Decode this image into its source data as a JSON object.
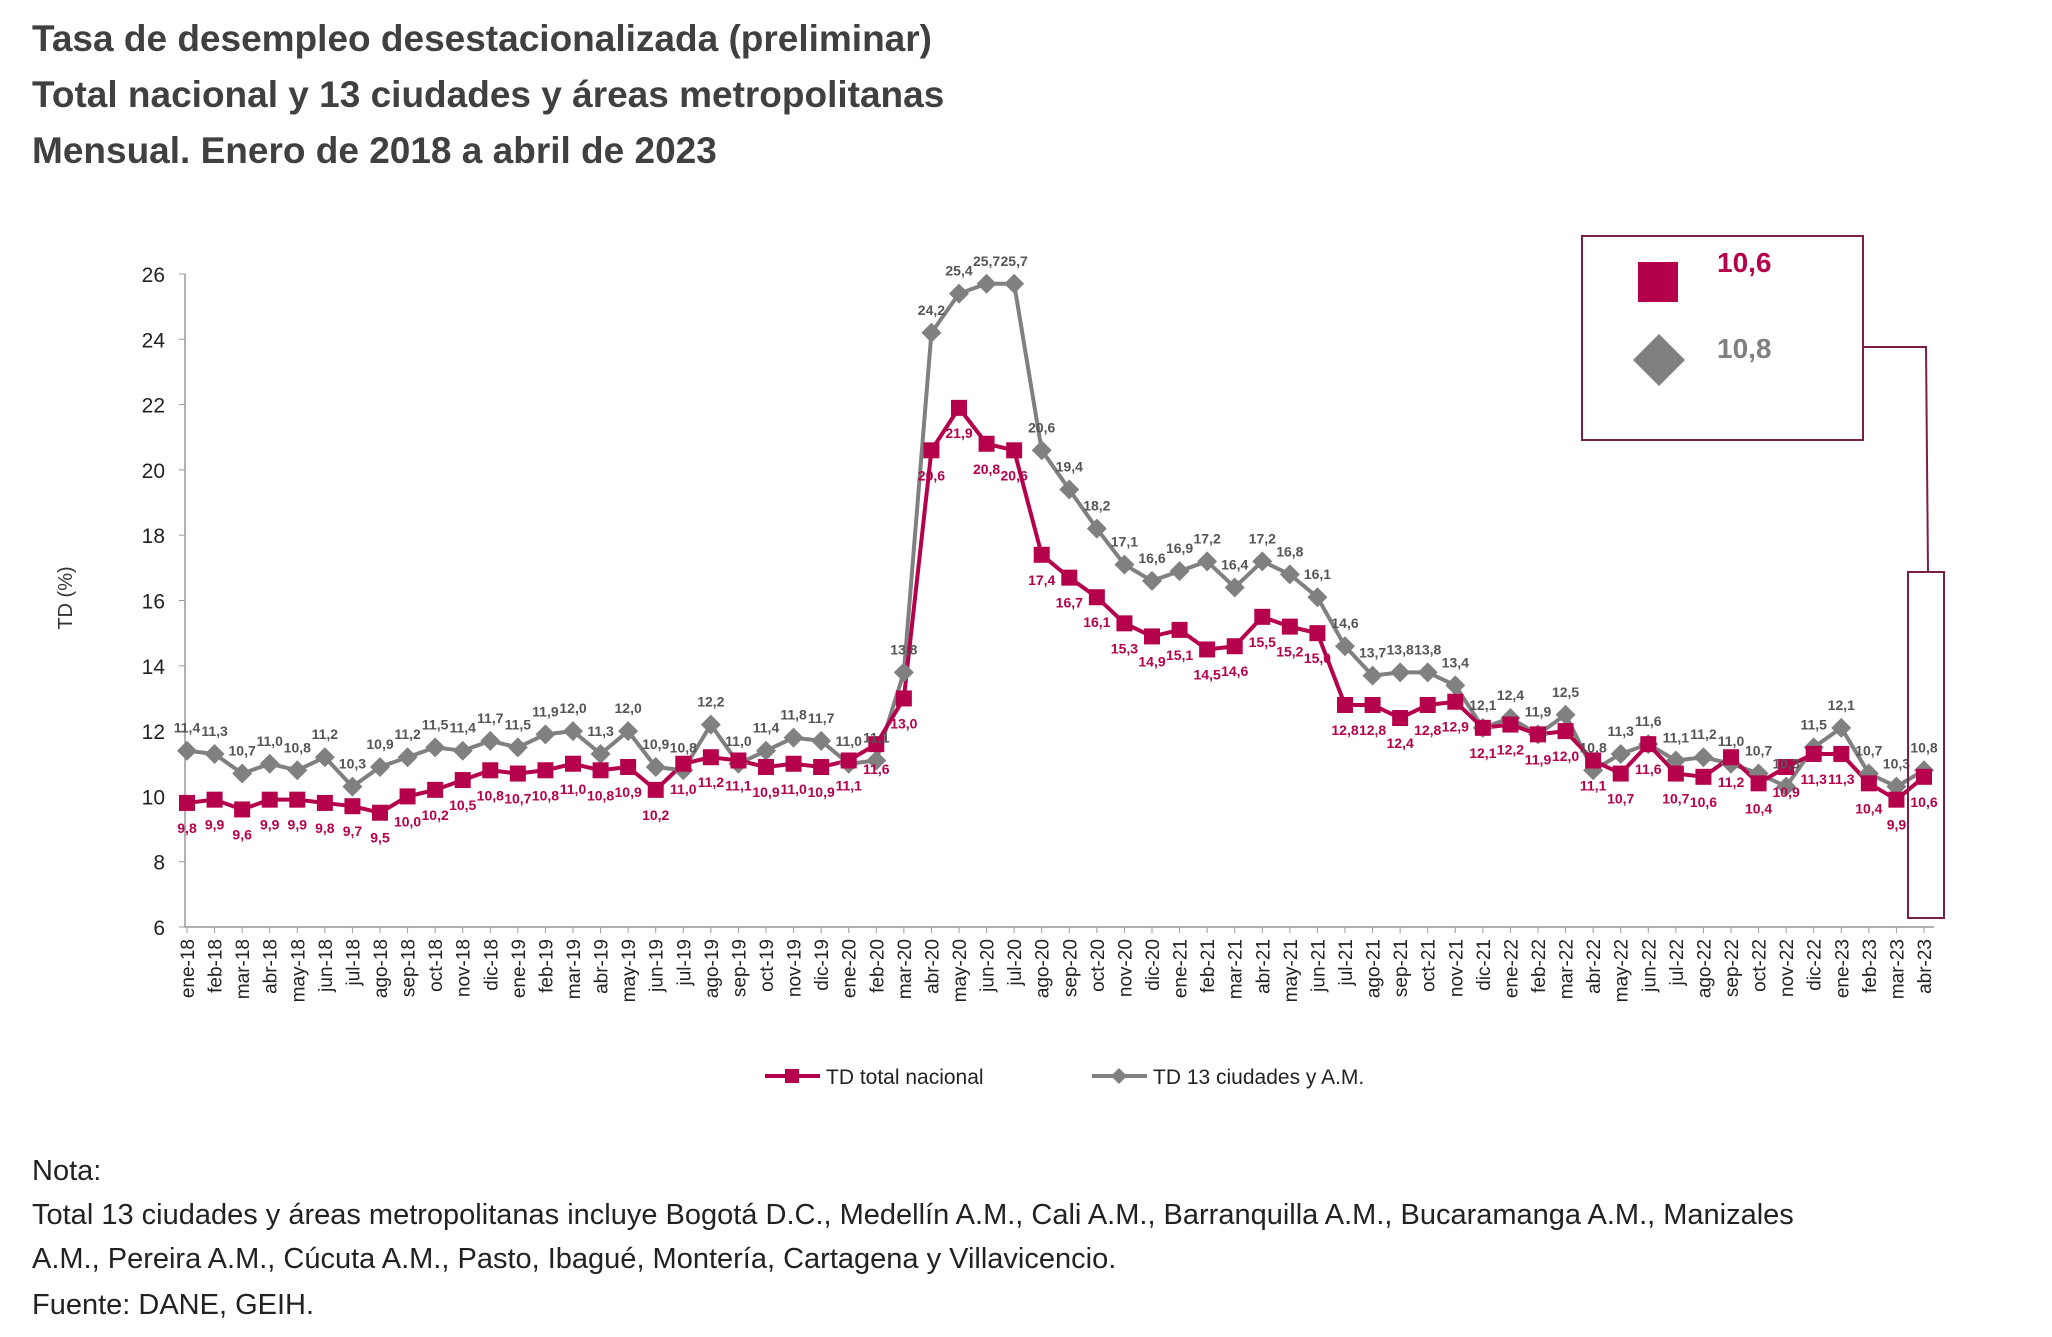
{
  "titles": [
    "Tasa de desempleo desestacionalizada (preliminar)",
    "Total nacional y 13 ciudades y áreas metropolitanas",
    "Mensual. Enero de 2018 a abril de 2023"
  ],
  "notes": [
    "Nota:",
    "Total 13 ciudades y áreas metropolitanas incluye Bogotá D.C., Medellín A.M., Cali A.M., Barranquilla A.M., Bucaramanga A.M., Manizales",
    "A.M., Pereira A.M., Cúcuta A.M., Pasto, Ibagué, Montería, Cartagena y Villavicencio.",
    "Fuente: DANE, GEIH."
  ],
  "highlight": {
    "national": "10,6",
    "cities": "10,8"
  },
  "chart_data": {
    "type": "line",
    "ylabel": "TD (%)",
    "ylim": [
      6,
      26
    ],
    "yticks": [
      6,
      8,
      10,
      12,
      14,
      16,
      18,
      20,
      22,
      24,
      26
    ],
    "grid": false,
    "legend_position": "bottom",
    "categories": [
      "ene-18",
      "feb-18",
      "mar-18",
      "abr-18",
      "may-18",
      "jun-18",
      "jul-18",
      "ago-18",
      "sep-18",
      "oct-18",
      "nov-18",
      "dic-18",
      "ene-19",
      "feb-19",
      "mar-19",
      "abr-19",
      "may-19",
      "jun-19",
      "jul-19",
      "ago-19",
      "sep-19",
      "oct-19",
      "nov-19",
      "dic-19",
      "ene-20",
      "feb-20",
      "mar-20",
      "abr-20",
      "may-20",
      "jun-20",
      "jul-20",
      "ago-20",
      "sep-20",
      "oct-20",
      "nov-20",
      "dic-20",
      "ene-21",
      "feb-21",
      "mar-21",
      "abr-21",
      "may-21",
      "jun-21",
      "jul-21",
      "ago-21",
      "sep-21",
      "oct-21",
      "nov-21",
      "dic-21",
      "ene-22",
      "feb-22",
      "mar-22",
      "abr-22",
      "may-22",
      "jun-22",
      "jul-22",
      "ago-22",
      "sep-22",
      "oct-22",
      "nov-22",
      "dic-22",
      "ene-23",
      "feb-23",
      "mar-23",
      "abr-23"
    ],
    "series": [
      {
        "name": "TD total nacional",
        "color": "#B5004B",
        "marker": "square",
        "values": [
          9.8,
          9.9,
          9.6,
          9.9,
          9.9,
          9.8,
          9.7,
          9.5,
          10.0,
          10.2,
          10.5,
          10.8,
          10.7,
          10.8,
          11.0,
          10.8,
          10.9,
          10.2,
          11.0,
          11.2,
          11.1,
          10.9,
          11.0,
          10.9,
          11.1,
          11.6,
          13.0,
          20.6,
          21.9,
          20.8,
          20.6,
          17.4,
          16.7,
          16.1,
          15.3,
          14.9,
          15.1,
          14.5,
          14.6,
          15.5,
          15.2,
          15.0,
          12.8,
          12.8,
          12.4,
          12.8,
          12.9,
          12.1,
          12.2,
          11.9,
          12.0,
          11.1,
          10.7,
          11.6,
          10.7,
          10.6,
          11.2,
          10.4,
          10.9,
          11.3,
          11.3,
          10.4,
          9.9,
          10.6
        ]
      },
      {
        "name": "TD 13 ciudades y A.M.",
        "color": "#808080",
        "marker": "diamond",
        "values": [
          11.4,
          11.3,
          10.7,
          11.0,
          10.8,
          11.2,
          10.3,
          10.9,
          11.2,
          11.5,
          11.4,
          11.7,
          11.5,
          11.9,
          12.0,
          11.3,
          12.0,
          10.9,
          10.8,
          12.2,
          11.0,
          11.4,
          11.8,
          11.7,
          11.0,
          11.1,
          13.8,
          24.2,
          25.4,
          25.7,
          25.7,
          20.6,
          19.4,
          18.2,
          17.1,
          16.6,
          16.9,
          17.2,
          16.4,
          17.2,
          16.8,
          16.1,
          14.6,
          13.7,
          13.8,
          13.8,
          13.4,
          12.1,
          12.4,
          11.9,
          12.5,
          10.8,
          11.3,
          11.6,
          11.1,
          11.2,
          11.0,
          10.7,
          10.3,
          11.5,
          12.1,
          10.7,
          10.3,
          10.8
        ]
      }
    ]
  }
}
